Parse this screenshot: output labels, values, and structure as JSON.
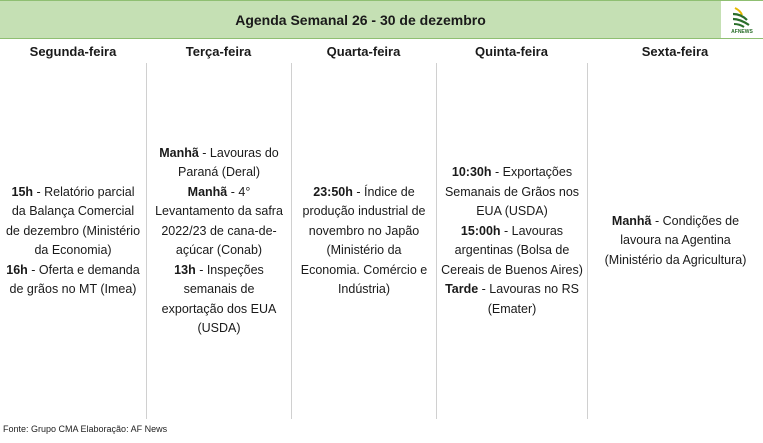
{
  "header": {
    "title": "Agenda Semanal 26 - 30 de dezembro"
  },
  "logo": {
    "text": "AFNEWS",
    "icon": "afnews-leaf-logo-icon"
  },
  "days": [
    {
      "label": "Segunda-feira",
      "entries": [
        {
          "bold": "15h",
          "text": " - Relatório parcial da Balança Comercial de dezembro (Ministério da Economia)"
        },
        {
          "bold": "16h",
          "text": " - Oferta e demanda de grãos no MT (Imea)"
        }
      ]
    },
    {
      "label": "Terça-feira",
      "entries": [
        {
          "bold": "Manhã",
          "text": " - Lavouras do Paraná (Deral)"
        },
        {
          "bold": "Manhã",
          "text": " - 4° Levantamento da safra 2022/23 de cana-de-açúcar (Conab)"
        },
        {
          "bold": "13h",
          "text": " - Inspeções semanais de exportação dos EUA (USDA)"
        }
      ]
    },
    {
      "label": "Quarta-feira",
      "entries": [
        {
          "bold": "23:50h",
          "text": " - Índice de produção industrial de novembro no Japão (Ministério da Economia. Comércio e Indústria)"
        }
      ]
    },
    {
      "label": "Quinta-feira",
      "entries": [
        {
          "bold": "10:30h",
          "text": " - Exportações Semanais de Grãos nos EUA (USDA)"
        },
        {
          "bold": "15:00h",
          "text": " - Lavouras argentinas (Bolsa de Cereais de Buenos Aires)"
        },
        {
          "bold": "Tarde",
          "text": " - Lavouras no RS (Emater)"
        }
      ]
    },
    {
      "label": "Sexta-feira",
      "entries": [
        {
          "bold": "Manhã",
          "text": " - Condições de lavoura na Agentina (Ministério da Agricultura)"
        }
      ]
    }
  ],
  "footer": {
    "text": "Fonte: Grupo CMA  Elaboração: AF News"
  },
  "colors": {
    "header_bg": "#c5e0b4",
    "header_border": "#8fbf72",
    "logo_green": "#2a6e2a",
    "logo_yellow": "#e6b800"
  }
}
